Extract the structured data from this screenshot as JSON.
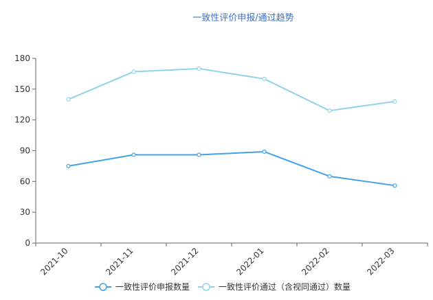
{
  "chart_data": {
    "type": "line",
    "title": "一致性评价申报/通过趋势",
    "categories": [
      "2021-10",
      "2021-11",
      "2021-12",
      "2022-01",
      "2022-02",
      "2022-03"
    ],
    "ylim": [
      0,
      180
    ],
    "yticks": [
      0,
      30,
      60,
      90,
      120,
      150,
      180
    ],
    "grid": false,
    "legend_position": "bottom",
    "series": [
      {
        "name": "一致性评价申报数量",
        "values": [
          75,
          86,
          86,
          89,
          65,
          56
        ],
        "color": "#41a1ea"
      },
      {
        "name": "一致性评价通过（含视同通过）数量",
        "values": [
          140,
          167,
          170,
          160,
          129,
          138
        ],
        "color": "#8fd3e8"
      }
    ]
  }
}
